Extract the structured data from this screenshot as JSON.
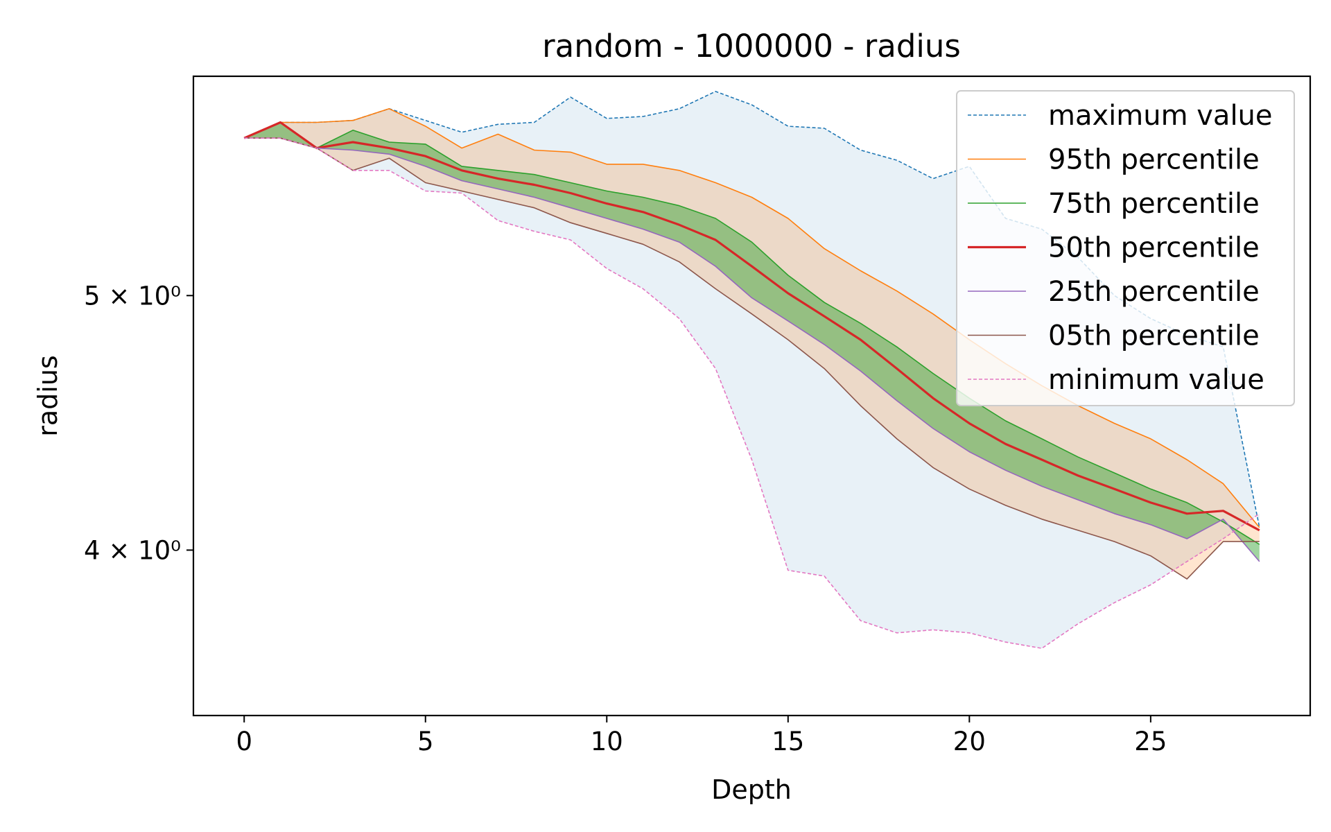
{
  "chart_data": {
    "type": "line",
    "title": "random - 1000000 - radius",
    "xlabel": "Depth",
    "ylabel": "radius",
    "xlim": [
      -1.4,
      29.4
    ],
    "ylim": [
      3.46,
      6.06
    ],
    "yscale": "log",
    "x_ticks": [
      {
        "value": 0,
        "label": "0"
      },
      {
        "value": 5,
        "label": "5"
      },
      {
        "value": 10,
        "label": "10"
      },
      {
        "value": 15,
        "label": "15"
      },
      {
        "value": 20,
        "label": "20"
      },
      {
        "value": 25,
        "label": "25"
      }
    ],
    "y_ticks": [
      {
        "value": 4,
        "label": "4 × 10⁰"
      },
      {
        "value": 5,
        "label": "5 × 10⁰"
      }
    ],
    "grid": false,
    "legend_position": "top-right",
    "x": [
      0,
      1,
      2,
      3,
      4,
      5,
      6,
      7,
      8,
      9,
      10,
      11,
      12,
      13,
      14,
      15,
      16,
      17,
      18,
      19,
      20,
      21,
      22,
      23,
      24,
      25,
      26,
      27,
      28
    ],
    "series": [
      {
        "name": "maximum value",
        "color": "#1f77b4",
        "style": "dashed",
        "values": [
          5.74,
          5.82,
          5.82,
          5.83,
          5.89,
          5.83,
          5.77,
          5.81,
          5.82,
          5.95,
          5.84,
          5.85,
          5.89,
          5.98,
          5.91,
          5.8,
          5.79,
          5.68,
          5.63,
          5.54,
          5.6,
          5.35,
          5.3,
          5.17,
          5.0,
          4.9,
          4.83,
          4.78,
          4.08
        ]
      },
      {
        "name": "95th percentile",
        "color": "#ff7f0e",
        "style": "solid",
        "values": [
          5.74,
          5.82,
          5.82,
          5.83,
          5.89,
          5.8,
          5.69,
          5.76,
          5.68,
          5.67,
          5.61,
          5.61,
          5.58,
          5.52,
          5.45,
          5.35,
          5.21,
          5.11,
          5.02,
          4.92,
          4.81,
          4.71,
          4.62,
          4.54,
          4.47,
          4.41,
          4.33,
          4.24,
          4.08
        ]
      },
      {
        "name": "75th percentile",
        "color": "#2ca02c",
        "style": "solid",
        "values": [
          5.74,
          5.82,
          5.69,
          5.78,
          5.72,
          5.71,
          5.6,
          5.58,
          5.56,
          5.52,
          5.48,
          5.45,
          5.41,
          5.35,
          5.24,
          5.09,
          4.97,
          4.88,
          4.78,
          4.67,
          4.57,
          4.48,
          4.41,
          4.34,
          4.28,
          4.22,
          4.17,
          4.1,
          4.02
        ]
      },
      {
        "name": "50th percentile",
        "color": "#d62728",
        "style": "solid",
        "thick": true,
        "values": [
          5.74,
          5.82,
          5.69,
          5.72,
          5.69,
          5.65,
          5.58,
          5.54,
          5.51,
          5.47,
          5.42,
          5.38,
          5.32,
          5.25,
          5.13,
          5.01,
          4.91,
          4.81,
          4.69,
          4.57,
          4.47,
          4.39,
          4.33,
          4.27,
          4.22,
          4.17,
          4.13,
          4.14,
          4.07
        ]
      },
      {
        "name": "25th percentile",
        "color": "#9467bd",
        "style": "solid",
        "values": [
          5.74,
          5.74,
          5.69,
          5.68,
          5.66,
          5.6,
          5.53,
          5.49,
          5.45,
          5.4,
          5.35,
          5.3,
          5.24,
          5.13,
          4.99,
          4.89,
          4.79,
          4.68,
          4.56,
          4.45,
          4.36,
          4.29,
          4.23,
          4.18,
          4.13,
          4.09,
          4.04,
          4.11,
          3.96
        ]
      },
      {
        "name": "05th percentile",
        "color": "#8c564b",
        "style": "solid",
        "values": [
          5.74,
          5.74,
          5.69,
          5.58,
          5.64,
          5.52,
          5.48,
          5.44,
          5.4,
          5.33,
          5.28,
          5.23,
          5.15,
          5.03,
          4.92,
          4.81,
          4.69,
          4.54,
          4.41,
          4.3,
          4.22,
          4.16,
          4.11,
          4.07,
          4.03,
          3.98,
          3.9,
          4.03,
          4.03
        ]
      },
      {
        "name": "minimum value",
        "color": "#e377c2",
        "style": "dashed",
        "values": [
          5.74,
          5.74,
          5.69,
          5.58,
          5.58,
          5.48,
          5.47,
          5.34,
          5.29,
          5.25,
          5.12,
          5.03,
          4.9,
          4.69,
          4.33,
          3.93,
          3.91,
          3.76,
          3.72,
          3.73,
          3.72,
          3.69,
          3.67,
          3.75,
          3.82,
          3.88,
          3.96,
          4.04,
          4.13
        ]
      }
    ],
    "bands": [
      {
        "from": "minimum value",
        "to": "maximum value",
        "color": "#1f77b4",
        "opacity": 0.1
      },
      {
        "from": "05th percentile",
        "to": "95th percentile",
        "color": "#ff7f0e",
        "opacity": 0.2
      },
      {
        "from": "25th percentile",
        "to": "75th percentile",
        "color": "#2ca02c",
        "opacity": 0.45
      }
    ]
  }
}
